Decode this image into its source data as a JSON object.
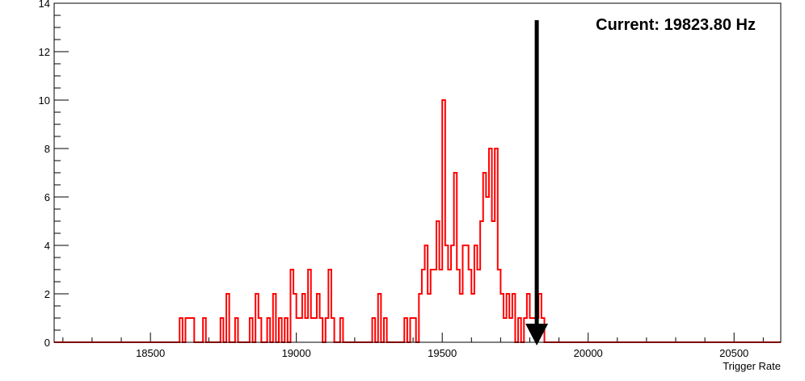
{
  "chart_data": {
    "type": "histogram",
    "title": "",
    "xlabel": "Trigger Rate",
    "ylabel": "",
    "xlim": [
      18170,
      20660
    ],
    "ylim": [
      0,
      14
    ],
    "x_major_ticks": [
      18500,
      19000,
      19500,
      20000,
      20500
    ],
    "x_minor_step": 100,
    "y_major_ticks": [
      0,
      2,
      4,
      6,
      8,
      10,
      12,
      14
    ],
    "y_minor_step": 0.5,
    "grid": false,
    "legend": "none",
    "line_color": "#ff0000",
    "bin_width": 10,
    "bins": [
      [
        18600,
        1
      ],
      [
        18620,
        1
      ],
      [
        18630,
        1
      ],
      [
        18640,
        1
      ],
      [
        18680,
        1
      ],
      [
        18740,
        1
      ],
      [
        18760,
        2
      ],
      [
        18790,
        1
      ],
      [
        18840,
        1
      ],
      [
        18860,
        2
      ],
      [
        18870,
        1
      ],
      [
        18900,
        1
      ],
      [
        18920,
        2
      ],
      [
        18940,
        1
      ],
      [
        18960,
        1
      ],
      [
        18980,
        3
      ],
      [
        18990,
        2
      ],
      [
        19000,
        1
      ],
      [
        19010,
        1
      ],
      [
        19020,
        2
      ],
      [
        19030,
        1
      ],
      [
        19040,
        3
      ],
      [
        19050,
        1
      ],
      [
        19060,
        1
      ],
      [
        19070,
        2
      ],
      [
        19080,
        1
      ],
      [
        19100,
        1
      ],
      [
        19110,
        3
      ],
      [
        19120,
        1
      ],
      [
        19150,
        1
      ],
      [
        19260,
        1
      ],
      [
        19280,
        2
      ],
      [
        19300,
        1
      ],
      [
        19370,
        1
      ],
      [
        19390,
        1
      ],
      [
        19400,
        1
      ],
      [
        19420,
        2
      ],
      [
        19430,
        3
      ],
      [
        19440,
        4
      ],
      [
        19450,
        2
      ],
      [
        19460,
        3
      ],
      [
        19470,
        3
      ],
      [
        19480,
        5
      ],
      [
        19490,
        3
      ],
      [
        19500,
        10
      ],
      [
        19510,
        4
      ],
      [
        19520,
        3
      ],
      [
        19530,
        4
      ],
      [
        19540,
        7
      ],
      [
        19550,
        3
      ],
      [
        19560,
        2
      ],
      [
        19570,
        4
      ],
      [
        19580,
        4
      ],
      [
        19590,
        3
      ],
      [
        19600,
        2
      ],
      [
        19610,
        4
      ],
      [
        19620,
        3
      ],
      [
        19630,
        5
      ],
      [
        19640,
        7
      ],
      [
        19650,
        6
      ],
      [
        19660,
        8
      ],
      [
        19670,
        5
      ],
      [
        19680,
        8
      ],
      [
        19690,
        3
      ],
      [
        19700,
        2
      ],
      [
        19710,
        1
      ],
      [
        19720,
        2
      ],
      [
        19730,
        1
      ],
      [
        19740,
        2
      ],
      [
        19760,
        1
      ],
      [
        19780,
        1
      ],
      [
        19790,
        2
      ],
      [
        19800,
        1
      ],
      [
        19810,
        1
      ],
      [
        19820,
        1
      ],
      [
        19830,
        2
      ],
      [
        19840,
        1
      ]
    ],
    "annotation": {
      "text": "Current: 19823.80 Hz",
      "x": 19823.8,
      "arrow": "down"
    }
  }
}
